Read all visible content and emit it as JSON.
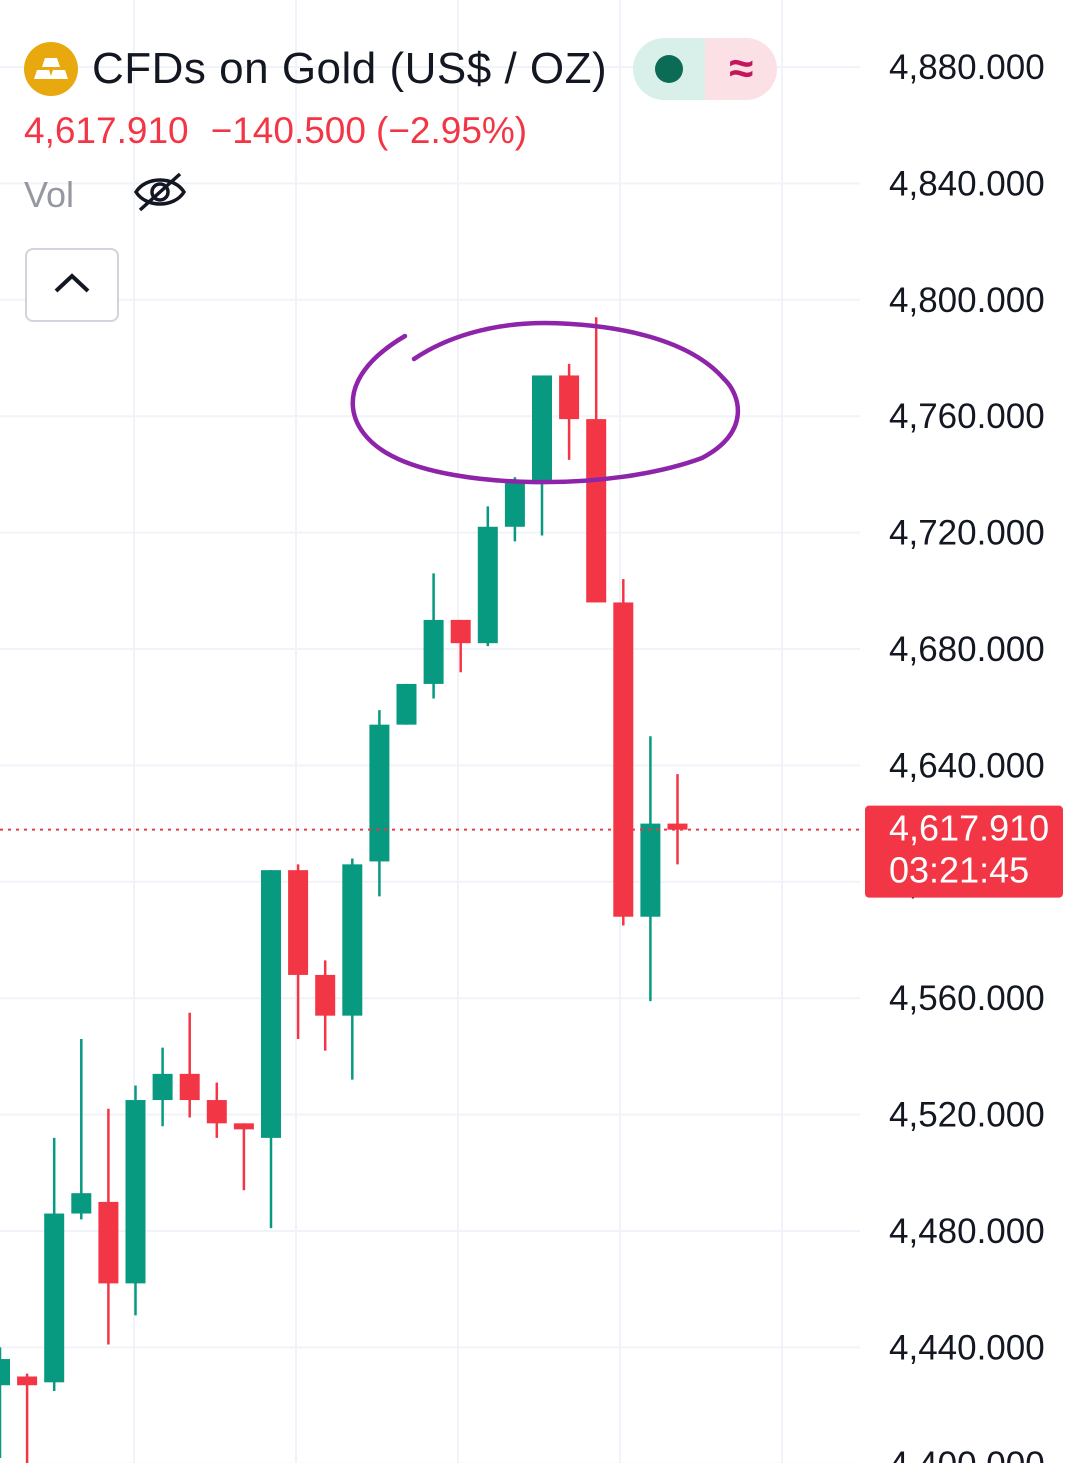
{
  "header": {
    "title": "CFDs on Gold (US$ / OZ)",
    "last_price": "4,617.910",
    "change": "−140.500",
    "change_percent": "(−2.95%)",
    "vol_label": "Vol",
    "market_status_icon": "market-open-dot",
    "extended_icon": "≈"
  },
  "colors": {
    "up": "#089981",
    "down": "#f23645",
    "grid": "#f0f3fa",
    "axis_text": "#131722",
    "annotation": "#8e24aa"
  },
  "price_tag": {
    "price": "4,617.910",
    "countdown": "03:21:45"
  },
  "chart_data": {
    "type": "candlestick",
    "y_axis_labels": [
      "4,880.000",
      "4,840.000",
      "4,800.000",
      "4,760.000",
      "4,720.000",
      "4,680.000",
      "4,640.000",
      "4,600.000",
      "4,560.000",
      "4,520.000",
      "4,480.000",
      "4,440.000",
      "4,400.000"
    ],
    "ylim": [
      4396,
      4899
    ],
    "last_price": 4617.91,
    "candles": [
      {
        "o": 4427,
        "h": 4440,
        "l": 4402,
        "c": 4436
      },
      {
        "o": 4430,
        "h": 4431,
        "l": 4395,
        "c": 4427
      },
      {
        "o": 4428,
        "h": 4512,
        "l": 4425,
        "c": 4486
      },
      {
        "o": 4486,
        "h": 4546,
        "l": 4484,
        "c": 4493
      },
      {
        "o": 4490,
        "h": 4522,
        "l": 4441,
        "c": 4462
      },
      {
        "o": 4462,
        "h": 4530,
        "l": 4451,
        "c": 4525
      },
      {
        "o": 4525,
        "h": 4543,
        "l": 4516,
        "c": 4534
      },
      {
        "o": 4534,
        "h": 4555,
        "l": 4519,
        "c": 4525
      },
      {
        "o": 4525,
        "h": 4531,
        "l": 4512,
        "c": 4517
      },
      {
        "o": 4517,
        "h": 4513,
        "l": 4494,
        "c": 4516
      },
      {
        "o": 4512,
        "h": 4602,
        "l": 4481,
        "c": 4604
      },
      {
        "o": 4604,
        "h": 4606,
        "l": 4546,
        "c": 4568
      },
      {
        "o": 4568,
        "h": 4573,
        "l": 4542,
        "c": 4554
      },
      {
        "o": 4554,
        "h": 4608,
        "l": 4532,
        "c": 4606
      },
      {
        "o": 4607,
        "h": 4659,
        "l": 4595,
        "c": 4654
      },
      {
        "o": 4654,
        "h": 4666,
        "l": 4654,
        "c": 4668
      },
      {
        "o": 4668,
        "h": 4706,
        "l": 4663,
        "c": 4690
      },
      {
        "o": 4690,
        "h": 4685,
        "l": 4672,
        "c": 4682
      },
      {
        "o": 4682,
        "h": 4729,
        "l": 4681,
        "c": 4722
      },
      {
        "o": 4722,
        "h": 4739,
        "l": 4717,
        "c": 4737
      },
      {
        "o": 4737,
        "h": 4774,
        "l": 4719,
        "c": 4774
      },
      {
        "o": 4774,
        "h": 4778,
        "l": 4745,
        "c": 4759
      },
      {
        "o": 4759,
        "h": 4794,
        "l": 4698,
        "c": 4696
      },
      {
        "o": 4696,
        "h": 4704,
        "l": 4585,
        "c": 4588
      },
      {
        "o": 4588,
        "h": 4650,
        "l": 4559,
        "c": 4620
      },
      {
        "o": 4620,
        "h": 4637,
        "l": 4606,
        "c": 4617.91
      }
    ]
  }
}
